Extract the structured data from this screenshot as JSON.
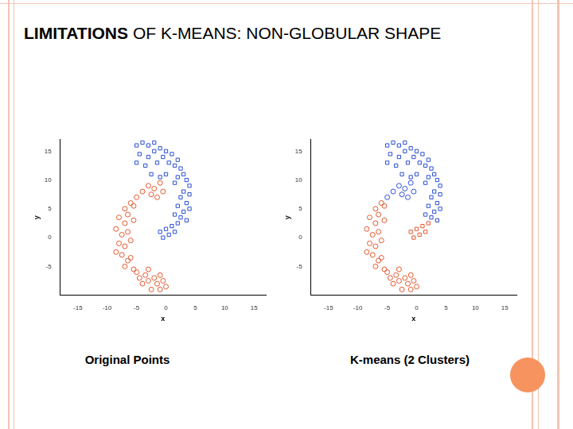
{
  "slide_title": {
    "bold": "LIMITATIONS",
    "rest": " OF K-MEANS: NON-GLOBULAR SHAPE"
  },
  "chart_data": [
    {
      "type": "scatter",
      "title": "Original Points",
      "x_label": "x",
      "y_label": "y",
      "xlim": [
        -18,
        17
      ],
      "ylim": [
        -10,
        17
      ],
      "xticks": [
        -15,
        -10,
        -5,
        0,
        5,
        10,
        15
      ],
      "yticks": [
        -5,
        0,
        5,
        10,
        15
      ],
      "grid": false,
      "series": [
        {
          "color": "#2a4fd6",
          "marker": "square",
          "values": [
            [
              -5,
              16
            ],
            [
              -4,
              16.5
            ],
            [
              -3,
              16
            ],
            [
              -2,
              16.5
            ],
            [
              -1,
              15.5
            ],
            [
              -4.5,
              14.5
            ],
            [
              -3,
              14
            ],
            [
              -2,
              15
            ],
            [
              -0.5,
              14
            ],
            [
              0,
              15
            ],
            [
              -5,
              13
            ],
            [
              -3.5,
              12.5
            ],
            [
              -1.5,
              13
            ],
            [
              0.5,
              13
            ],
            [
              1,
              14.5
            ],
            [
              1.5,
              12.5
            ],
            [
              2,
              13.5
            ],
            [
              2.5,
              12
            ],
            [
              3,
              11
            ],
            [
              2,
              10.5
            ],
            [
              3.5,
              10
            ],
            [
              4,
              9
            ],
            [
              1.5,
              9.5
            ],
            [
              0,
              11
            ],
            [
              -1,
              10.5
            ],
            [
              -2.5,
              11
            ],
            [
              3,
              8
            ],
            [
              4,
              7.5
            ],
            [
              2.5,
              7
            ],
            [
              3.5,
              6
            ],
            [
              2,
              5.5
            ],
            [
              4,
              5
            ],
            [
              3,
              4.5
            ],
            [
              2.5,
              3.5
            ],
            [
              1.5,
              4
            ],
            [
              3.5,
              3
            ],
            [
              2,
              2.5
            ],
            [
              1,
              2
            ],
            [
              0,
              1.5
            ],
            [
              -1,
              1
            ],
            [
              0.5,
              0.5
            ],
            [
              -0.5,
              0
            ],
            [
              1.5,
              1
            ]
          ]
        },
        {
          "color": "#e4572e",
          "marker": "circle",
          "values": [
            [
              -3,
              9
            ],
            [
              -2,
              8.5
            ],
            [
              -1,
              9.5
            ],
            [
              -4,
              8
            ],
            [
              -2.5,
              7.5
            ],
            [
              -1.5,
              7
            ],
            [
              -0.5,
              8
            ],
            [
              -5,
              7
            ],
            [
              -6,
              6
            ],
            [
              -7,
              5
            ],
            [
              -5.5,
              5.5
            ],
            [
              -6.5,
              4
            ],
            [
              -8,
              3.5
            ],
            [
              -7,
              2.5
            ],
            [
              -5.5,
              3
            ],
            [
              -8.5,
              1.5
            ],
            [
              -7.5,
              0.5
            ],
            [
              -6.5,
              1
            ],
            [
              -8,
              -1
            ],
            [
              -7,
              -1.5
            ],
            [
              -6,
              -0.5
            ],
            [
              -8.5,
              -2.5
            ],
            [
              -7.5,
              -3
            ],
            [
              -6.5,
              -4
            ],
            [
              -7,
              -5
            ],
            [
              -5.5,
              -5.5
            ],
            [
              -6,
              -3.5
            ],
            [
              -5,
              -6
            ],
            [
              -4.5,
              -7
            ],
            [
              -3.5,
              -6.5
            ],
            [
              -4,
              -8
            ],
            [
              -3,
              -7.5
            ],
            [
              -2,
              -7
            ],
            [
              -1.5,
              -8
            ],
            [
              -1,
              -6.5
            ],
            [
              -0.5,
              -7.5
            ],
            [
              0,
              -8.5
            ],
            [
              -2.5,
              -9
            ],
            [
              -1,
              -9
            ],
            [
              -3,
              -5.5
            ]
          ]
        }
      ]
    },
    {
      "type": "scatter",
      "title": "K-means (2 Clusters)",
      "x_label": "x",
      "y_label": "y",
      "xlim": [
        -18,
        17
      ],
      "ylim": [
        -10,
        17
      ],
      "xticks": [
        -15,
        -10,
        -5,
        0,
        5,
        10,
        15
      ],
      "yticks": [
        -5,
        0,
        5,
        10,
        15
      ],
      "grid": false,
      "series": [
        {
          "color": "#2a4fd6",
          "marker": "square",
          "values": [
            [
              -5,
              16
            ],
            [
              -4,
              16.5
            ],
            [
              -3,
              16
            ],
            [
              -2,
              16.5
            ],
            [
              -1,
              15.5
            ],
            [
              -4.5,
              14.5
            ],
            [
              -3,
              14
            ],
            [
              -2,
              15
            ],
            [
              -0.5,
              14
            ],
            [
              0,
              15
            ],
            [
              -5,
              13
            ],
            [
              -3.5,
              12.5
            ],
            [
              -1.5,
              13
            ],
            [
              0.5,
              13
            ],
            [
              1,
              14.5
            ],
            [
              1.5,
              12.5
            ],
            [
              2,
              13.5
            ],
            [
              2.5,
              12
            ],
            [
              3,
              11
            ],
            [
              2,
              10.5
            ],
            [
              3.5,
              10
            ],
            [
              4,
              9
            ],
            [
              1.5,
              9.5
            ],
            [
              0,
              11
            ],
            [
              -1,
              10.5
            ],
            [
              -2.5,
              11
            ],
            [
              3,
              8
            ],
            [
              4,
              7.5
            ],
            [
              2.5,
              7
            ],
            [
              3.5,
              6
            ],
            [
              2,
              5.5
            ],
            [
              4,
              5
            ],
            [
              3,
              4.5
            ],
            [
              2.5,
              3.5
            ],
            [
              1.5,
              4
            ],
            [
              3.5,
              3
            ]
          ]
        },
        {
          "color": "#e4572e",
          "marker": "square",
          "values": [
            [
              2,
              2.5
            ],
            [
              1,
              2
            ],
            [
              0,
              1.5
            ],
            [
              -1,
              1
            ],
            [
              0.5,
              0.5
            ],
            [
              -0.5,
              0
            ],
            [
              1.5,
              1
            ]
          ]
        },
        {
          "color": "#2a4fd6",
          "marker": "circle",
          "values": [
            [
              -3,
              9
            ],
            [
              -2,
              8.5
            ],
            [
              -1,
              9.5
            ],
            [
              -4,
              8
            ],
            [
              -2.5,
              7.5
            ],
            [
              -1.5,
              7
            ],
            [
              -0.5,
              8
            ],
            [
              -5,
              7
            ]
          ]
        },
        {
          "color": "#e4572e",
          "marker": "circle",
          "values": [
            [
              -6,
              6
            ],
            [
              -7,
              5
            ],
            [
              -5.5,
              5.5
            ],
            [
              -6.5,
              4
            ],
            [
              -8,
              3.5
            ],
            [
              -7,
              2.5
            ],
            [
              -5.5,
              3
            ],
            [
              -8.5,
              1.5
            ],
            [
              -7.5,
              0.5
            ],
            [
              -6.5,
              1
            ],
            [
              -8,
              -1
            ],
            [
              -7,
              -1.5
            ],
            [
              -6,
              -0.5
            ],
            [
              -8.5,
              -2.5
            ],
            [
              -7.5,
              -3
            ],
            [
              -6.5,
              -4
            ],
            [
              -7,
              -5
            ],
            [
              -5.5,
              -5.5
            ],
            [
              -6,
              -3.5
            ],
            [
              -5,
              -6
            ],
            [
              -4.5,
              -7
            ],
            [
              -3.5,
              -6.5
            ],
            [
              -4,
              -8
            ],
            [
              -3,
              -7.5
            ],
            [
              -2,
              -7
            ],
            [
              -1.5,
              -8
            ],
            [
              -1,
              -6.5
            ],
            [
              -0.5,
              -7.5
            ],
            [
              0,
              -8.5
            ],
            [
              -2.5,
              -9
            ],
            [
              -1,
              -9
            ],
            [
              -3,
              -5.5
            ]
          ]
        }
      ]
    }
  ]
}
